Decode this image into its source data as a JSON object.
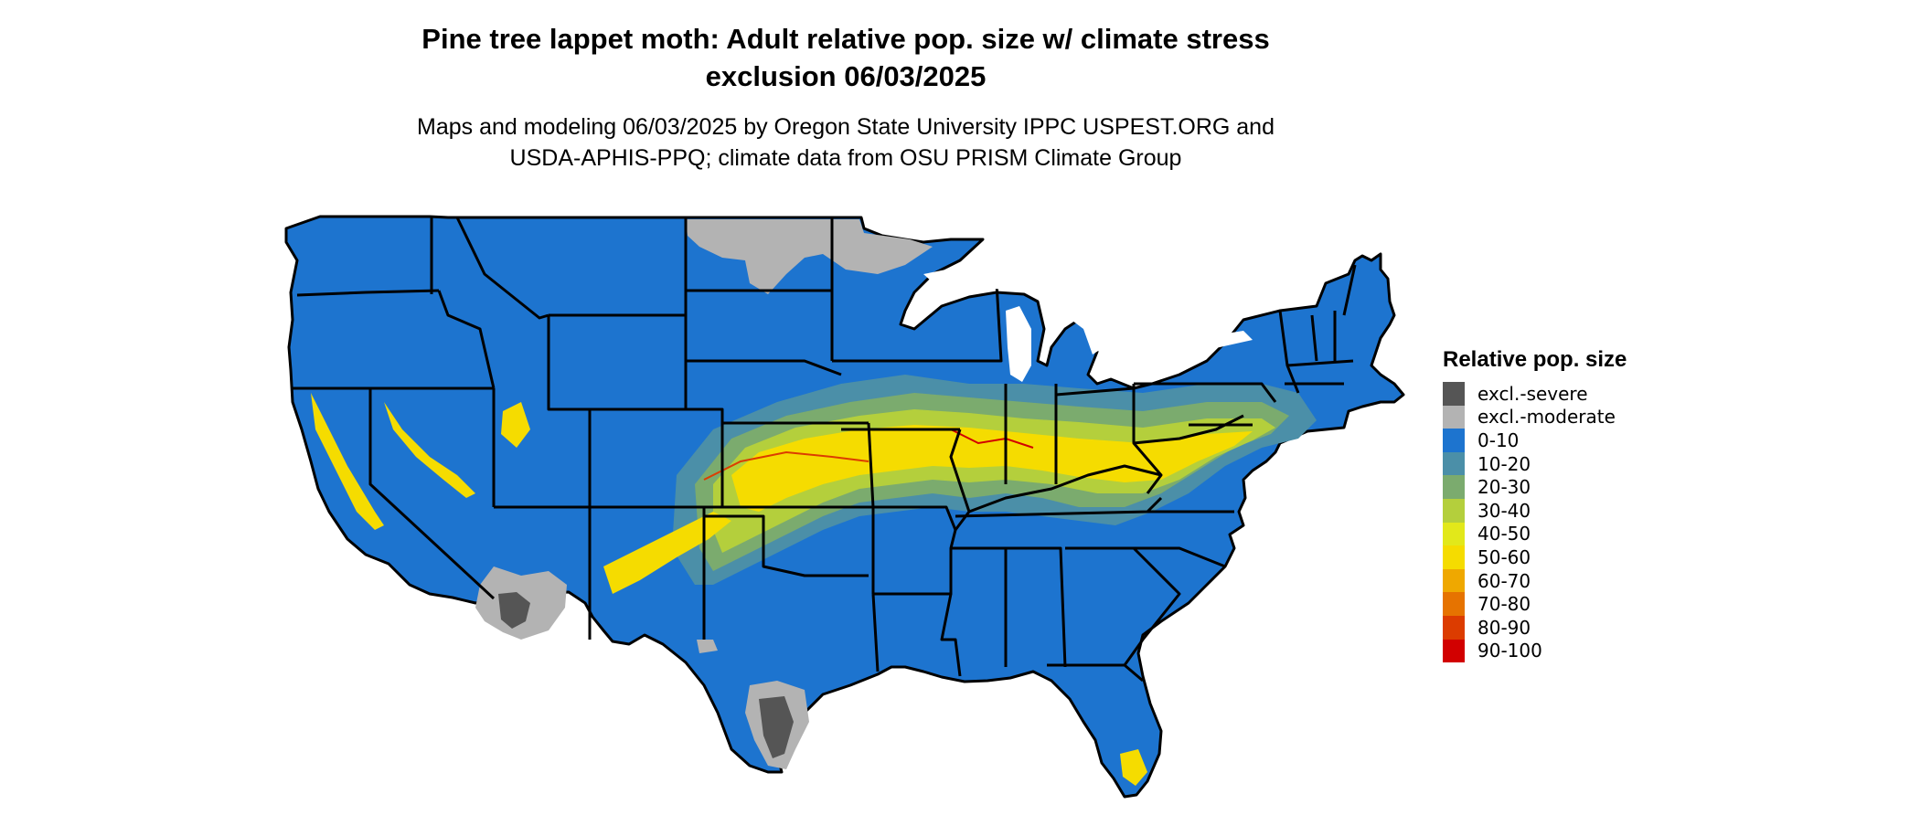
{
  "title": {
    "line1": "Pine tree lappet moth: Adult relative pop. size w/ climate stress",
    "line2": "exclusion 06/03/2025"
  },
  "subtitle": {
    "line1": "Maps and modeling 06/03/2025 by Oregon State University IPPC USPEST.ORG and",
    "line2": "USDA-APHIS-PPQ; climate data from OSU PRISM Climate Group"
  },
  "legend": {
    "title": "Relative pop. size",
    "items": [
      {
        "label": "excl.-severe",
        "color": "#555555"
      },
      {
        "label": "excl.-moderate",
        "color": "#b3b3b3"
      },
      {
        "label": "0-10",
        "color": "#1d74cf"
      },
      {
        "label": "10-20",
        "color": "#4b8fa8"
      },
      {
        "label": "20-30",
        "color": "#7bab6e"
      },
      {
        "label": "30-40",
        "color": "#b4cf3c"
      },
      {
        "label": "40-50",
        "color": "#e2e81a"
      },
      {
        "label": "50-60",
        "color": "#f5dc00"
      },
      {
        "label": "60-70",
        "color": "#efa800"
      },
      {
        "label": "70-80",
        "color": "#e67300"
      },
      {
        "label": "80-90",
        "color": "#dc3c00"
      },
      {
        "label": "90-100",
        "color": "#d20000"
      }
    ]
  }
}
